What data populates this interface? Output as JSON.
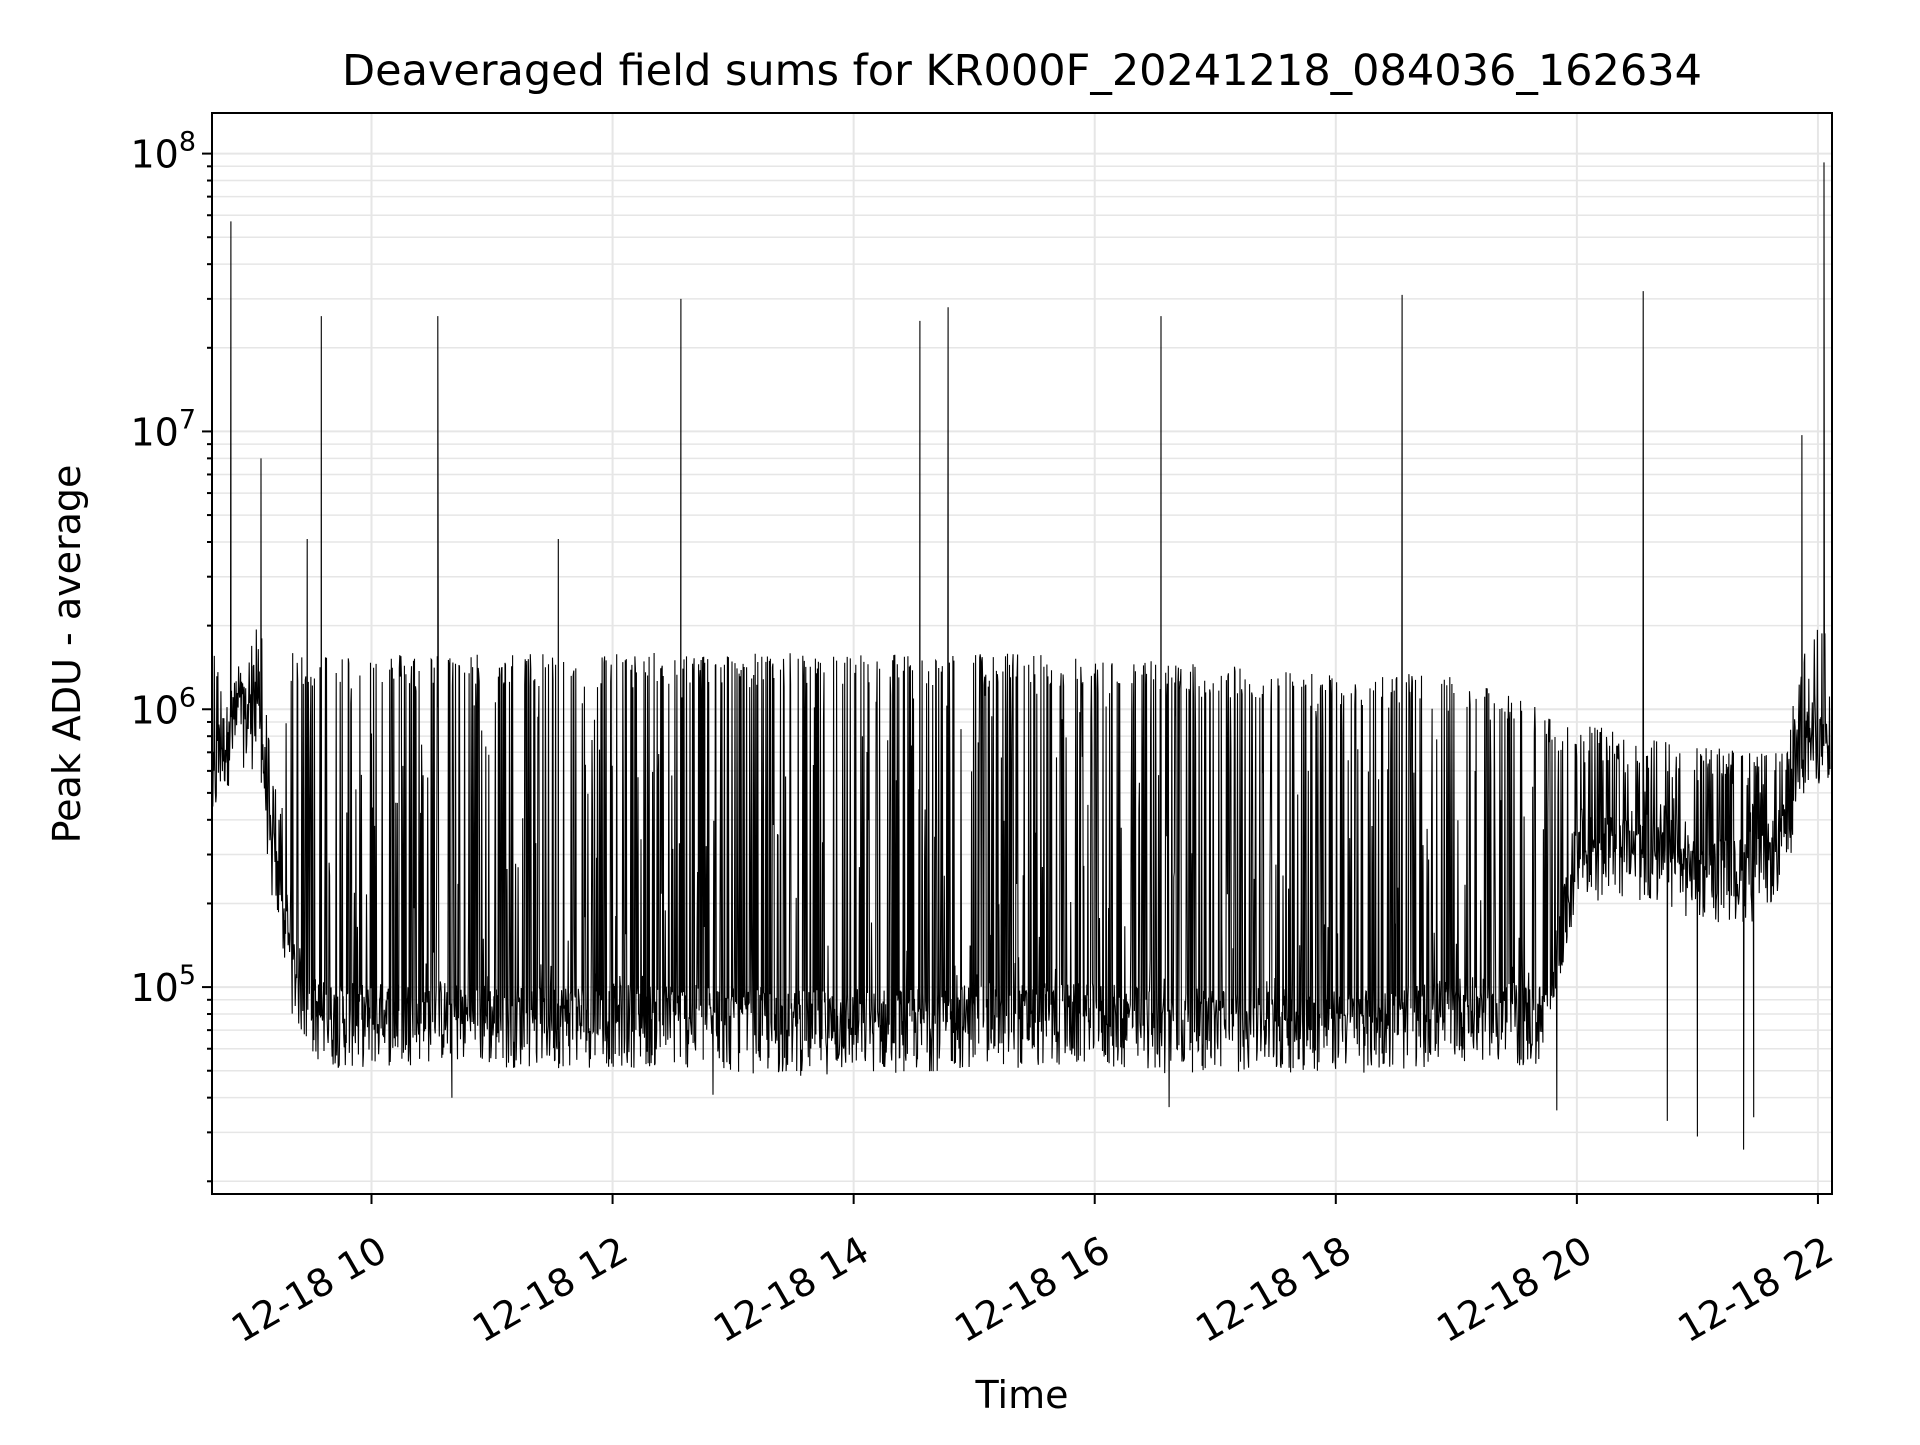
{
  "chart_data": {
    "type": "line",
    "title": "Deaveraged field sums for KR000F_20241218_084036_162634",
    "xlabel": "Time",
    "ylabel": "Peak ADU - average",
    "xscale": "time",
    "yscale": "log",
    "xlim": [
      "2024-12-18 08:40:36",
      "2024-12-18 22:07:00"
    ],
    "ylim": [
      18000,
      140000000
    ],
    "x_tick_labels": [
      "12-18 10",
      "12-18 12",
      "12-18 14",
      "12-18 16",
      "12-18 18",
      "12-18 20",
      "12-18 22"
    ],
    "y_tick_labels": [
      {
        "base": "10",
        "exp": "5"
      },
      {
        "base": "10",
        "exp": "6"
      },
      {
        "base": "10",
        "exp": "7"
      },
      {
        "base": "10",
        "exp": "8"
      }
    ],
    "grid": true,
    "legend": "none",
    "line_color": "#000000",
    "series": [
      {
        "x": [
          "2024-12-18 08:41",
          "2024-12-18 08:45",
          "2024-12-18 08:50",
          "2024-12-18 08:55",
          "2024-12-18 09:00",
          "2024-12-18 09:05",
          "2024-12-18 09:10",
          "2024-12-18 09:15",
          "2024-12-18 09:20",
          "2024-12-18 09:30",
          "2024-12-18 09:40",
          "2024-12-18 10:00",
          "2024-12-18 10:30",
          "2024-12-18 11:00",
          "2024-12-18 11:30",
          "2024-12-18 12:00",
          "2024-12-18 12:30",
          "2024-12-18 13:00",
          "2024-12-18 13:30",
          "2024-12-18 14:00",
          "2024-12-18 14:30",
          "2024-12-18 15:00",
          "2024-12-18 15:30",
          "2024-12-18 16:00",
          "2024-12-18 16:30",
          "2024-12-18 17:00",
          "2024-12-18 17:30",
          "2024-12-18 18:00",
          "2024-12-18 18:30",
          "2024-12-18 19:00",
          "2024-12-18 19:30",
          "2024-12-18 19:45",
          "2024-12-18 20:00",
          "2024-12-18 20:30",
          "2024-12-18 21:00",
          "2024-12-18 21:30",
          "2024-12-18 21:45",
          "2024-12-18 21:50",
          "2024-12-18 22:00",
          "2024-12-18 22:06"
        ],
        "y_baseline": [
          500000,
          700000,
          800000,
          900000,
          900000,
          800000,
          300000,
          200000,
          120000,
          80000,
          75000,
          75000,
          78000,
          75000,
          75000,
          75000,
          75000,
          72000,
          70000,
          72000,
          72000,
          75000,
          75000,
          75000,
          72000,
          72000,
          72000,
          72000,
          72000,
          80000,
          75000,
          75000,
          300000,
          300000,
          250000,
          250000,
          350000,
          700000,
          800000,
          600000
        ],
        "y_upper": [
          1900000,
          1400000,
          1300000,
          1500000,
          1700000,
          2300000,
          600000,
          500000,
          1600000,
          1600000,
          1600000,
          1600000,
          1600000,
          1600000,
          1600000,
          1600000,
          1600000,
          1600000,
          1600000,
          1600000,
          1600000,
          1600000,
          1600000,
          1500000,
          1500000,
          1450000,
          1400000,
          1350000,
          1350000,
          1300000,
          1100000,
          1000000,
          900000,
          800000,
          750000,
          700000,
          700000,
          1500000,
          2000000,
          1900000
        ],
        "spikes": [
          {
            "x": "2024-12-18 08:50",
            "y": 57000000
          },
          {
            "x": "2024-12-18 09:05",
            "y": 8000000
          },
          {
            "x": "2024-12-18 09:28",
            "y": 4100000
          },
          {
            "x": "2024-12-18 09:35",
            "y": 26000000
          },
          {
            "x": "2024-12-18 10:33",
            "y": 26000000
          },
          {
            "x": "2024-12-18 11:33",
            "y": 4100000
          },
          {
            "x": "2024-12-18 12:34",
            "y": 30000000
          },
          {
            "x": "2024-12-18 14:33",
            "y": 25000000
          },
          {
            "x": "2024-12-18 14:47",
            "y": 28000000
          },
          {
            "x": "2024-12-18 16:33",
            "y": 26000000
          },
          {
            "x": "2024-12-18 18:33",
            "y": 31000000
          },
          {
            "x": "2024-12-18 20:33",
            "y": 32000000
          },
          {
            "x": "2024-12-18 21:52",
            "y": 9700000
          },
          {
            "x": "2024-12-18 22:03",
            "y": 93000000
          }
        ],
        "dips": [
          {
            "x": "2024-12-18 10:40",
            "y": 40000
          },
          {
            "x": "2024-12-18 12:50",
            "y": 41000
          },
          {
            "x": "2024-12-18 16:37",
            "y": 37000
          },
          {
            "x": "2024-12-18 19:50",
            "y": 36000
          },
          {
            "x": "2024-12-18 20:45",
            "y": 33000
          },
          {
            "x": "2024-12-18 21:00",
            "y": 29000
          },
          {
            "x": "2024-12-18 21:23",
            "y": 26000
          },
          {
            "x": "2024-12-18 21:28",
            "y": 34000
          }
        ]
      }
    ]
  }
}
